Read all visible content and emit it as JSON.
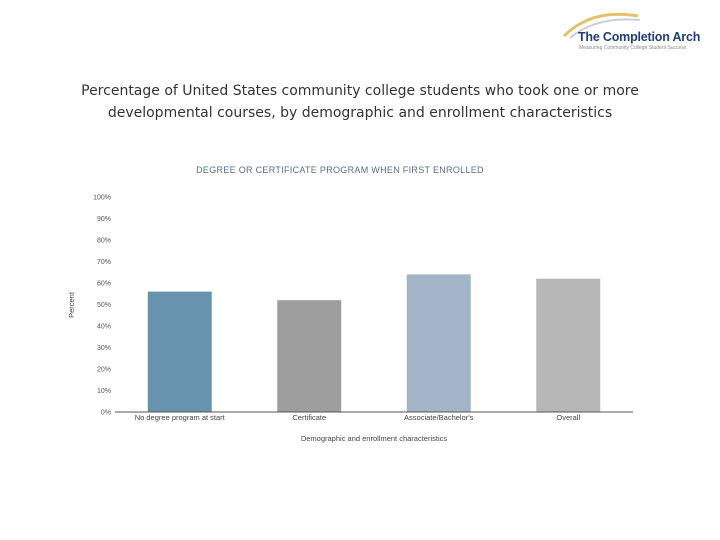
{
  "header": {
    "logo_name": "The Completion Arch",
    "logo_tagline": "Measuring Community College Student Success",
    "title": "Percentage of United States community college students who took one or more developmental courses, by demographic and enrollment characteristics"
  },
  "colors": {
    "title_text": "#333333",
    "logo_blue": "#1f3f73",
    "logo_gold": "#e3c26a",
    "subtitle_text": "#5a6e86"
  },
  "chart_data": {
    "type": "bar",
    "title": "DEGREE OR CERTIFICATE PROGRAM WHEN FIRST ENROLLED",
    "xlabel": "Demographic and enrollment characteristics",
    "ylabel": "Percent",
    "ylim": [
      0,
      100
    ],
    "yticks": [
      "0%",
      "10%",
      "20%",
      "30%",
      "40%",
      "50%",
      "60%",
      "70%",
      "80%",
      "90%",
      "100%"
    ],
    "categories": [
      "No degree program at start",
      "Certificate",
      "Associate/Bachelor's",
      "Overall"
    ],
    "values": [
      56,
      52,
      64,
      62
    ],
    "bar_colors": [
      "#6893af",
      "#9e9e9e",
      "#a2b5c7",
      "#b7b7b7"
    ],
    "grid": false,
    "legend": "none"
  }
}
